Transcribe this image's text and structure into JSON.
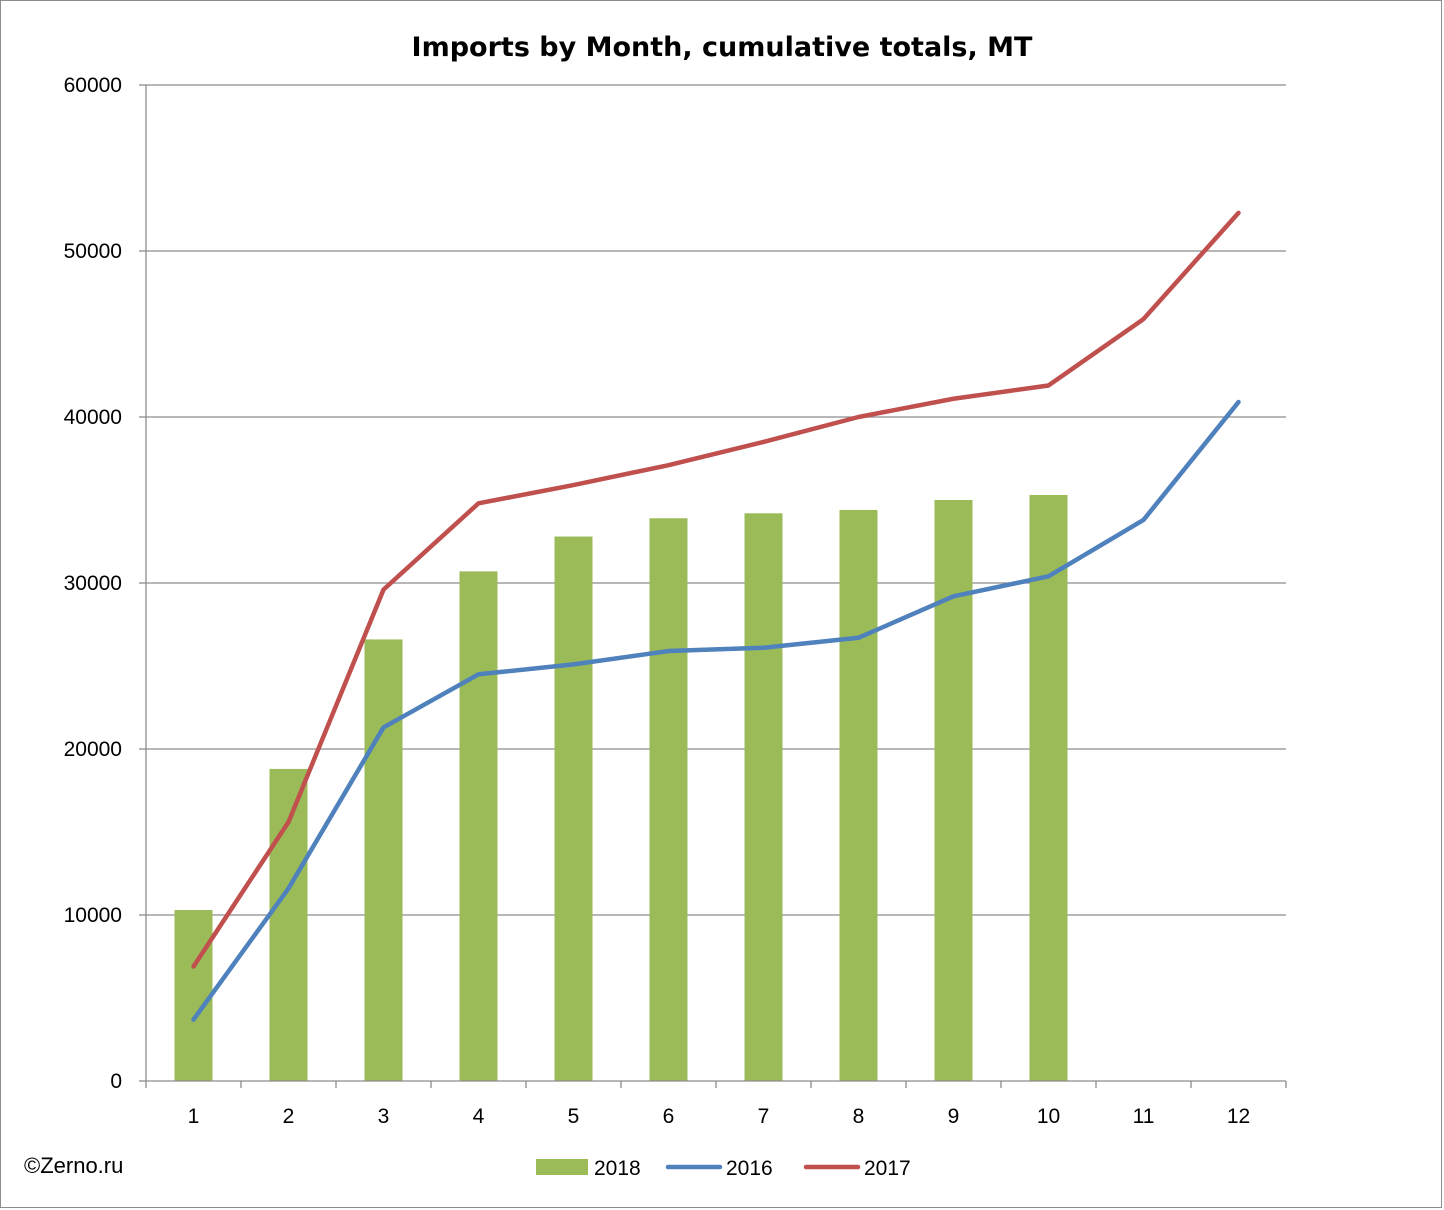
{
  "copyright": "©Zerno.ru",
  "chart_data": {
    "type": "bar",
    "title": "Imports by Month, cumulative totals, MT",
    "xlabel": "",
    "ylabel": "",
    "categories": [
      "1",
      "2",
      "3",
      "4",
      "5",
      "6",
      "7",
      "8",
      "9",
      "10",
      "11",
      "12"
    ],
    "ylim": [
      0,
      60000
    ],
    "yticks": [
      0,
      10000,
      20000,
      30000,
      40000,
      50000,
      60000
    ],
    "grid": true,
    "legend_position": "bottom",
    "series": [
      {
        "name": "2018",
        "type": "bar",
        "color": "#9bbb59",
        "values": [
          10300,
          18800,
          26600,
          30700,
          32800,
          33900,
          34200,
          34400,
          35000,
          35300,
          null,
          null
        ]
      },
      {
        "name": "2016",
        "type": "line",
        "color": "#4f81bd",
        "values": [
          3700,
          11600,
          21300,
          24500,
          25100,
          25900,
          26100,
          26700,
          29200,
          30400,
          33800,
          40900
        ]
      },
      {
        "name": "2017",
        "type": "line",
        "color": "#c0504d",
        "values": [
          6900,
          15600,
          29600,
          34800,
          35900,
          37100,
          38500,
          40000,
          41100,
          41900,
          45900,
          52300
        ]
      }
    ]
  }
}
